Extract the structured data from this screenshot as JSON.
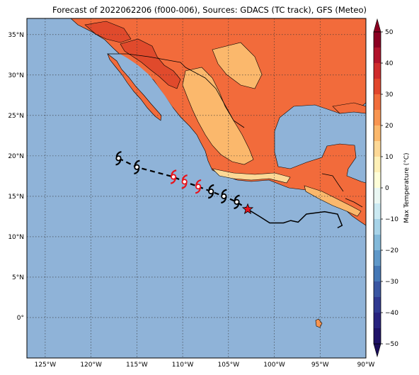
{
  "title": "Forecast of 2022062206 (f000-006), Sources: GDACS (TC track), GFS (Meteo)",
  "map": {
    "lon_range": [
      -127,
      -90
    ],
    "lat_range": [
      -5,
      37
    ],
    "lat_ticks": [
      {
        "value": 35,
        "label": "35°N"
      },
      {
        "value": 30,
        "label": "30°N"
      },
      {
        "value": 25,
        "label": "25°N"
      },
      {
        "value": 20,
        "label": "20°N"
      },
      {
        "value": 15,
        "label": "15°N"
      },
      {
        "value": 10,
        "label": "10°N"
      },
      {
        "value": 5,
        "label": "5°N"
      },
      {
        "value": 0,
        "label": "0°"
      }
    ],
    "lon_ticks": [
      {
        "value": -125,
        "label": "125°W"
      },
      {
        "value": -120,
        "label": "120°W"
      },
      {
        "value": -115,
        "label": "115°W"
      },
      {
        "value": -110,
        "label": "110°W"
      },
      {
        "value": -105,
        "label": "105°W"
      },
      {
        "value": -100,
        "label": "100°W"
      },
      {
        "value": -95,
        "label": "95°W"
      },
      {
        "value": -90,
        "label": "90°W"
      }
    ],
    "ocean_color": "#8fb3d8",
    "grid": true
  },
  "track": {
    "observed_line_color": "#000000",
    "forecast_line_style": "dashed",
    "current_position_marker": "star",
    "current_position_color": "#e8131b",
    "storm_symbols": [
      {
        "lon": -117.0,
        "lat": 19.7,
        "color": "#000000"
      },
      {
        "lon": -115.0,
        "lat": 18.6,
        "color": "#000000"
      },
      {
        "lon": -111.0,
        "lat": 17.4,
        "color": "#e8131b"
      },
      {
        "lon": -109.8,
        "lat": 16.8,
        "color": "#e8131b"
      },
      {
        "lon": -108.3,
        "lat": 16.2,
        "color": "#e8131b"
      },
      {
        "lon": -106.9,
        "lat": 15.6,
        "color": "#000000"
      },
      {
        "lon": -105.5,
        "lat": 15.0,
        "color": "#000000"
      },
      {
        "lon": -104.1,
        "lat": 14.3,
        "color": "#000000"
      }
    ],
    "observed_path": [
      [
        -102.9,
        13.4
      ],
      [
        -101.6,
        12.5
      ],
      [
        -100.5,
        11.7
      ],
      [
        -99.0,
        11.7
      ],
      [
        -98.2,
        12.0
      ],
      [
        -97.4,
        11.8
      ],
      [
        -96.5,
        12.8
      ],
      [
        -94.5,
        13.1
      ],
      [
        -93.1,
        12.8
      ],
      [
        -92.6,
        11.4
      ],
      [
        -93.1,
        11.1
      ]
    ],
    "forecast_path": [
      [
        -117.0,
        19.7
      ],
      [
        -115.0,
        18.6
      ],
      [
        -111.0,
        17.4
      ],
      [
        -109.8,
        16.8
      ],
      [
        -108.3,
        16.2
      ],
      [
        -106.9,
        15.6
      ],
      [
        -105.5,
        15.0
      ],
      [
        -104.1,
        14.3
      ],
      [
        -102.9,
        13.4
      ]
    ],
    "current_position": {
      "lon": -102.9,
      "lat": 13.4
    }
  },
  "colorbar": {
    "label": "Max Temperature (°C)",
    "ticks": [
      "50",
      "40",
      "30",
      "20",
      "10",
      "0",
      "−10",
      "−20",
      "−30",
      "−40",
      "−50"
    ],
    "levels": [
      {
        "from": 45,
        "to": 50,
        "color": "#8b0021"
      },
      {
        "from": 40,
        "to": 45,
        "color": "#b1132b"
      },
      {
        "from": 35,
        "to": 40,
        "color": "#cf2c2c"
      },
      {
        "from": 30,
        "to": 35,
        "color": "#e1472d"
      },
      {
        "from": 25,
        "to": 30,
        "color": "#f16e3c"
      },
      {
        "from": 20,
        "to": 25,
        "color": "#f89551"
      },
      {
        "from": 15,
        "to": 20,
        "color": "#fbb86c"
      },
      {
        "from": 10,
        "to": 15,
        "color": "#fdd896"
      },
      {
        "from": 5,
        "to": 10,
        "color": "#fef0b7"
      },
      {
        "from": 0,
        "to": 5,
        "color": "#fefed8"
      },
      {
        "from": -5,
        "to": 0,
        "color": "#eaf7f3"
      },
      {
        "from": -10,
        "to": -5,
        "color": "#cbe9f2"
      },
      {
        "from": -15,
        "to": -10,
        "color": "#a7d3e8"
      },
      {
        "from": -20,
        "to": -15,
        "color": "#82b9da"
      },
      {
        "from": -25,
        "to": -20,
        "color": "#5f98c9"
      },
      {
        "from": -30,
        "to": -25,
        "color": "#4578b6"
      },
      {
        "from": -35,
        "to": -30,
        "color": "#3a56a2"
      },
      {
        "from": -40,
        "to": -35,
        "color": "#303a91"
      },
      {
        "from": -45,
        "to": -40,
        "color": "#28237f"
      },
      {
        "from": -50,
        "to": -45,
        "color": "#1f1368"
      }
    ]
  },
  "land": {
    "colors": {
      "hot": "#e04a2c",
      "warm": "#f26b3b",
      "mild": "#fbb86c",
      "cool": "#fdd896",
      "coast": "#f89551",
      "border": "#000000"
    }
  }
}
